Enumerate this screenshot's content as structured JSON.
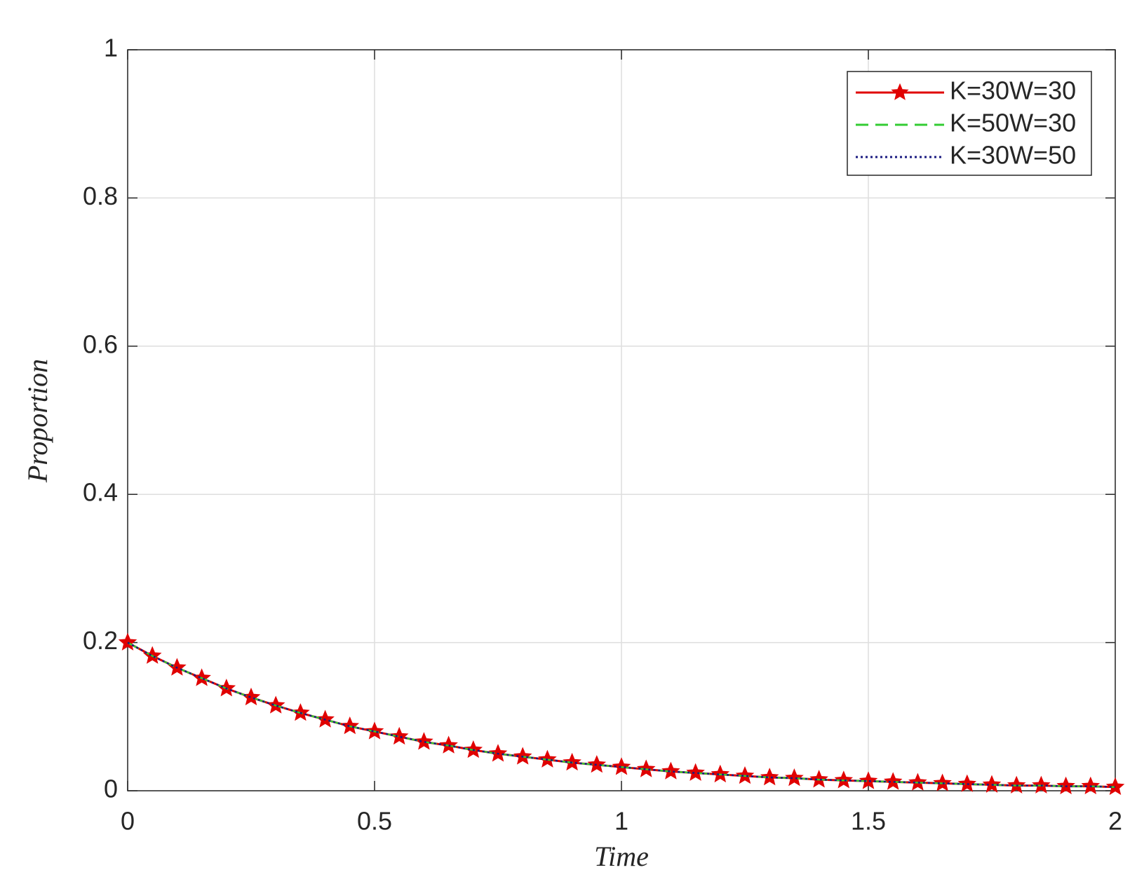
{
  "chart_data": {
    "type": "line",
    "xlabel": "Time",
    "ylabel": "Proportion",
    "x": [
      0,
      0.05,
      0.1,
      0.15,
      0.2,
      0.25,
      0.3,
      0.35,
      0.4,
      0.45,
      0.5,
      0.55,
      0.6,
      0.65,
      0.7,
      0.75,
      0.8,
      0.85,
      0.9,
      0.95,
      1,
      1.05,
      1.1,
      1.15,
      1.2,
      1.25,
      1.3,
      1.35,
      1.4,
      1.45,
      1.5,
      1.55,
      1.6,
      1.65,
      1.7,
      1.75,
      1.8,
      1.85,
      1.9,
      1.95,
      2
    ],
    "series": [
      {
        "name": "K=30W=30",
        "color": "#e00000",
        "style": "solid",
        "marker": "star",
        "values": [
          0.2,
          0.182,
          0.166,
          0.152,
          0.138,
          0.126,
          0.115,
          0.105,
          0.096,
          0.087,
          0.08,
          0.073,
          0.066,
          0.061,
          0.055,
          0.05,
          0.046,
          0.042,
          0.038,
          0.035,
          0.032,
          0.029,
          0.026,
          0.024,
          0.022,
          0.02,
          0.018,
          0.017,
          0.015,
          0.014,
          0.013,
          0.012,
          0.011,
          0.01,
          0.009,
          0.008,
          0.007,
          0.007,
          0.006,
          0.006,
          0.005
        ]
      },
      {
        "name": "K=50W=30",
        "color": "#33cc33",
        "style": "dashed",
        "marker": "none",
        "values": [
          0.2,
          0.182,
          0.166,
          0.152,
          0.138,
          0.126,
          0.115,
          0.105,
          0.096,
          0.087,
          0.08,
          0.073,
          0.066,
          0.061,
          0.055,
          0.05,
          0.046,
          0.042,
          0.038,
          0.035,
          0.032,
          0.029,
          0.026,
          0.024,
          0.022,
          0.02,
          0.018,
          0.017,
          0.015,
          0.014,
          0.013,
          0.012,
          0.011,
          0.01,
          0.009,
          0.008,
          0.007,
          0.007,
          0.006,
          0.006,
          0.005
        ]
      },
      {
        "name": "K=30W=50",
        "color": "#1a1a80",
        "style": "dotted",
        "marker": "none",
        "values": [
          0.2,
          0.182,
          0.166,
          0.152,
          0.138,
          0.126,
          0.115,
          0.105,
          0.096,
          0.087,
          0.08,
          0.073,
          0.066,
          0.061,
          0.055,
          0.05,
          0.046,
          0.042,
          0.038,
          0.035,
          0.032,
          0.029,
          0.026,
          0.024,
          0.022,
          0.02,
          0.018,
          0.017,
          0.015,
          0.014,
          0.013,
          0.012,
          0.011,
          0.01,
          0.009,
          0.008,
          0.007,
          0.007,
          0.006,
          0.006,
          0.005
        ]
      }
    ],
    "xlim": [
      0,
      2
    ],
    "xticks": [
      0,
      0.5,
      1,
      1.5,
      2
    ],
    "ylim": [
      0,
      1
    ],
    "yticks": [
      0,
      0.2,
      0.4,
      0.6,
      0.8,
      1
    ],
    "grid": true,
    "legend": "upper right"
  }
}
